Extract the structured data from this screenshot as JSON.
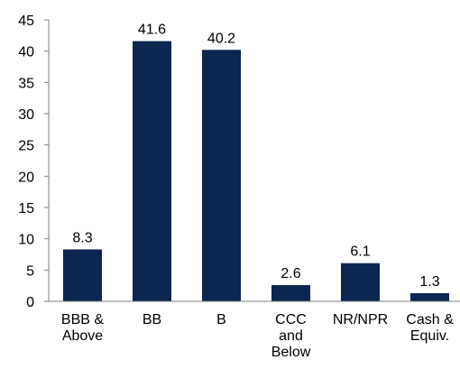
{
  "chart_data": {
    "type": "bar",
    "title": "",
    "xlabel": "",
    "ylabel": "",
    "ylim": [
      0,
      45
    ],
    "yticks": [
      "0",
      "5",
      "10",
      "15",
      "20",
      "25",
      "30",
      "35",
      "40",
      "45"
    ],
    "grid": false,
    "legend": "none",
    "bar_color": "#0c2650",
    "categories": [
      [
        "BBB &",
        "Above"
      ],
      [
        "BB"
      ],
      [
        "B"
      ],
      [
        "CCC",
        "and",
        "Below"
      ],
      [
        "NR/NPR"
      ],
      [
        "Cash &",
        "Equiv."
      ]
    ],
    "values": [
      8.3,
      41.6,
      40.2,
      2.6,
      6.1,
      1.3
    ],
    "value_labels": [
      "8.3",
      "41.6",
      "40.2",
      "2.6",
      "6.1",
      "1.3"
    ]
  }
}
